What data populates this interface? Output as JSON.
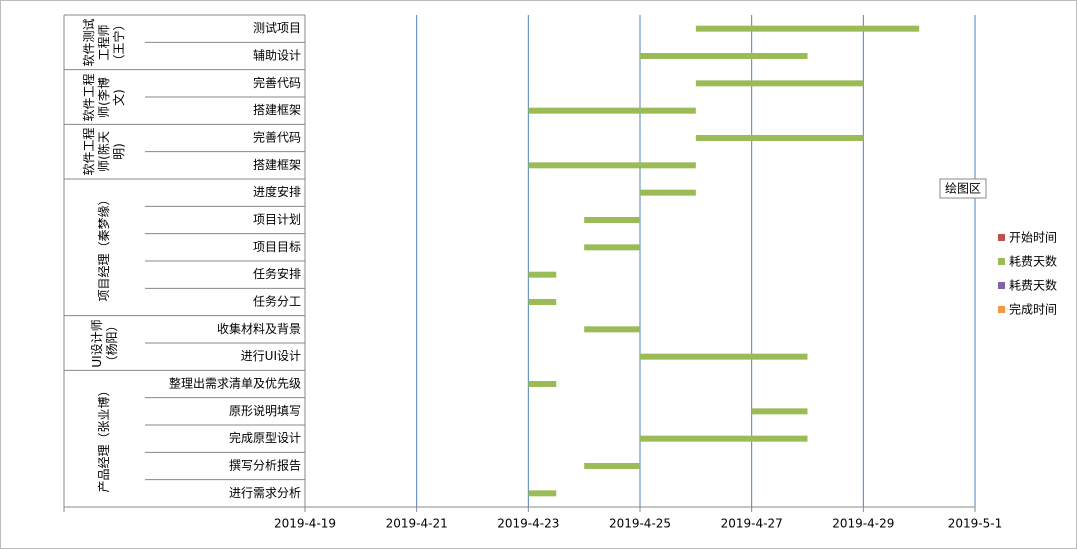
{
  "chart_data": {
    "type": "gantt",
    "groups": [
      {
        "label": "软件测试工程师（王宁）",
        "categories": [
          "测试项目",
          "辅助设计"
        ]
      },
      {
        "label": "软件工程师(李博文)",
        "categories": [
          "完善代码",
          "搭建框架"
        ]
      },
      {
        "label": "软件工程师(陈天明)",
        "categories": [
          "完善代码",
          "搭建框架"
        ]
      },
      {
        "label": "项目经理（秦梦缘）",
        "categories": [
          "进度安排",
          "项目计划",
          "项目目标",
          "任务安排",
          "任务分工"
        ]
      },
      {
        "label": "UI设计师（杨阳）",
        "categories": [
          "收集材料及背景",
          "进行UI设计"
        ]
      },
      {
        "label": "产品经理（张业博）",
        "categories": [
          "整理出需求清单及优先级",
          "原形说明填写",
          "完成原型设计",
          "撰写分析报告",
          "进行需求分析"
        ]
      }
    ],
    "series": [
      {
        "name": "开始时间",
        "color": "#c0504d",
        "visible": false,
        "values": [
          43581,
          43580,
          43581,
          43578,
          43581,
          43578,
          43580,
          43579,
          43579,
          43578,
          43578,
          43579,
          43580,
          43578,
          43582,
          43580,
          43579,
          43578
        ]
      },
      {
        "name": "耗费天数",
        "color": "#9bbb59",
        "visible": true,
        "values": [
          4,
          3,
          3,
          3,
          3,
          3,
          1,
          1,
          1,
          0.5,
          0.5,
          1,
          3,
          0.5,
          1,
          3,
          1,
          0.5
        ]
      },
      {
        "name": "耗费天数",
        "color": "#8064a2"
      },
      {
        "name": "完成时间",
        "color": "#f79646"
      }
    ],
    "xlim": [
      43574,
      43586
    ],
    "xticks": [
      {
        "value": 43574,
        "label": "2019-4-19"
      },
      {
        "value": 43576,
        "label": "2019-4-21"
      },
      {
        "value": 43578,
        "label": "2019-4-23"
      },
      {
        "value": 43580,
        "label": "2019-4-25"
      },
      {
        "value": 43582,
        "label": "2019-4-27"
      },
      {
        "value": 43584,
        "label": "2019-4-29"
      },
      {
        "value": 43586,
        "label": "2019-5-1"
      }
    ],
    "grid": true,
    "legend": "right",
    "annotation": "绘图区"
  }
}
